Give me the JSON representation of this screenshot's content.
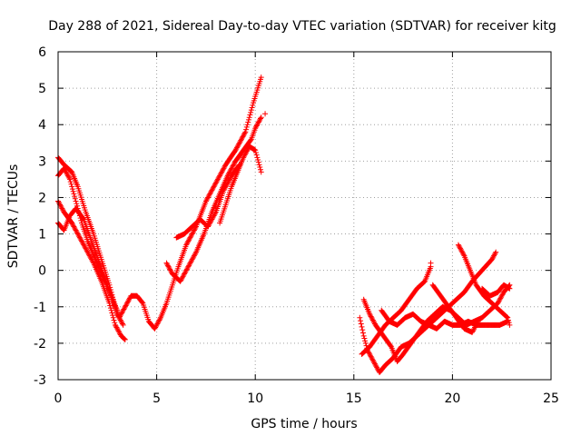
{
  "chart_data": {
    "type": "scatter",
    "title": "Day 288 of 2021, Sidereal Day-to-day VTEC variation (SDTVAR) for receiver kitg",
    "xlabel": "GPS time / hours",
    "ylabel": "SDTVAR / TECUs",
    "xlim": [
      0,
      25
    ],
    "ylim": [
      -3,
      6
    ],
    "xticks": [
      0,
      5,
      10,
      15,
      20,
      25
    ],
    "yticks": [
      -3,
      -2,
      -1,
      0,
      1,
      2,
      3,
      4,
      5,
      6
    ],
    "grid": true,
    "marker": "+",
    "color": "#ff0000",
    "tracks": [
      [
        [
          0.0,
          3.1
        ],
        [
          0.3,
          2.9
        ],
        [
          0.7,
          2.7
        ],
        [
          1.0,
          2.3
        ],
        [
          1.4,
          1.6
        ],
        [
          1.8,
          1.0
        ],
        [
          2.2,
          0.3
        ],
        [
          2.6,
          -0.4
        ],
        [
          2.9,
          -1.0
        ],
        [
          3.1,
          -1.3
        ],
        [
          3.4,
          -1.0
        ],
        [
          3.7,
          -0.7
        ],
        [
          4.0,
          -0.7
        ],
        [
          4.3,
          -0.9
        ],
        [
          4.6,
          -1.4
        ],
        [
          4.9,
          -1.6
        ],
        [
          5.2,
          -1.3
        ],
        [
          5.5,
          -0.9
        ],
        [
          5.8,
          -0.4
        ],
        [
          6.1,
          0.1
        ],
        [
          6.5,
          0.7
        ],
        [
          7.0,
          1.2
        ],
        [
          7.5,
          1.9
        ],
        [
          8.0,
          2.4
        ],
        [
          8.5,
          2.9
        ],
        [
          9.0,
          3.3
        ],
        [
          9.5,
          3.8
        ],
        [
          9.9,
          4.6
        ],
        [
          10.3,
          5.3
        ]
      ],
      [
        [
          0.0,
          1.9
        ],
        [
          0.3,
          1.6
        ],
        [
          0.7,
          1.3
        ],
        [
          1.0,
          1.0
        ],
        [
          1.4,
          0.6
        ],
        [
          1.8,
          0.2
        ],
        [
          2.2,
          -0.3
        ],
        [
          2.6,
          -0.9
        ],
        [
          2.9,
          -1.5
        ],
        [
          3.2,
          -1.8
        ],
        [
          3.4,
          -1.9
        ]
      ],
      [
        [
          0.0,
          1.3
        ],
        [
          0.3,
          1.1
        ],
        [
          0.6,
          1.5
        ],
        [
          0.9,
          1.7
        ],
        [
          1.3,
          1.4
        ],
        [
          1.7,
          0.8
        ],
        [
          2.1,
          0.2
        ],
        [
          2.5,
          -0.4
        ],
        [
          2.8,
          -0.9
        ],
        [
          3.0,
          -1.2
        ],
        [
          3.3,
          -1.5
        ]
      ],
      [
        [
          0.0,
          2.6
        ],
        [
          0.3,
          2.8
        ],
        [
          0.6,
          2.5
        ],
        [
          0.9,
          1.9
        ],
        [
          1.2,
          1.3
        ],
        [
          1.5,
          0.8
        ],
        [
          1.9,
          0.3
        ],
        [
          2.3,
          -0.2
        ],
        [
          2.7,
          -0.7
        ],
        [
          3.0,
          -1.1
        ]
      ],
      [
        [
          5.5,
          0.2
        ],
        [
          5.8,
          -0.1
        ],
        [
          6.2,
          -0.3
        ],
        [
          6.6,
          0.1
        ],
        [
          7.0,
          0.5
        ],
        [
          7.4,
          1.0
        ],
        [
          7.8,
          1.6
        ],
        [
          8.2,
          2.1
        ],
        [
          8.6,
          2.6
        ],
        [
          9.0,
          3.0
        ],
        [
          9.4,
          3.3
        ],
        [
          9.8,
          3.6
        ],
        [
          10.0,
          3.9
        ],
        [
          10.3,
          4.2
        ]
      ],
      [
        [
          8.2,
          1.3
        ],
        [
          8.5,
          1.8
        ],
        [
          8.8,
          2.3
        ],
        [
          9.1,
          2.7
        ],
        [
          9.4,
          3.1
        ],
        [
          9.7,
          3.4
        ],
        [
          10.0,
          3.3
        ],
        [
          10.3,
          2.7
        ]
      ],
      [
        [
          6.0,
          0.9
        ],
        [
          6.4,
          1.0
        ],
        [
          6.8,
          1.2
        ],
        [
          7.2,
          1.4
        ],
        [
          7.6,
          1.2
        ],
        [
          8.0,
          1.6
        ],
        [
          8.4,
          2.2
        ],
        [
          8.8,
          2.6
        ],
        [
          9.2,
          2.9
        ]
      ],
      [
        [
          15.3,
          -1.3
        ],
        [
          15.5,
          -1.8
        ],
        [
          15.7,
          -2.2
        ],
        [
          16.0,
          -2.5
        ],
        [
          16.3,
          -2.8
        ],
        [
          16.6,
          -2.6
        ],
        [
          17.0,
          -2.4
        ],
        [
          17.4,
          -2.1
        ],
        [
          17.8,
          -2.0
        ],
        [
          18.2,
          -1.8
        ],
        [
          18.6,
          -1.6
        ],
        [
          19.0,
          -1.4
        ],
        [
          19.4,
          -1.2
        ],
        [
          19.8,
          -1.0
        ],
        [
          20.2,
          -0.8
        ],
        [
          20.6,
          -0.6
        ],
        [
          21.0,
          -0.3
        ],
        [
          21.5,
          0.0
        ],
        [
          22.0,
          0.3
        ],
        [
          22.2,
          0.5
        ]
      ],
      [
        [
          15.4,
          -2.3
        ],
        [
          15.8,
          -2.1
        ],
        [
          16.2,
          -1.8
        ],
        [
          16.6,
          -1.5
        ],
        [
          17.0,
          -1.3
        ],
        [
          17.4,
          -1.1
        ],
        [
          17.8,
          -0.8
        ],
        [
          18.2,
          -0.5
        ],
        [
          18.6,
          -0.3
        ],
        [
          18.9,
          0.1
        ]
      ],
      [
        [
          15.5,
          -0.8
        ],
        [
          15.8,
          -1.2
        ],
        [
          16.1,
          -1.5
        ],
        [
          16.5,
          -1.8
        ],
        [
          16.9,
          -2.1
        ],
        [
          17.2,
          -2.5
        ],
        [
          17.5,
          -2.3
        ],
        [
          17.9,
          -2.0
        ],
        [
          18.3,
          -1.7
        ],
        [
          18.7,
          -1.4
        ],
        [
          19.1,
          -1.2
        ],
        [
          19.5,
          -1.0
        ],
        [
          19.9,
          -1.1
        ],
        [
          20.3,
          -1.3
        ],
        [
          20.7,
          -1.5
        ],
        [
          21.1,
          -1.4
        ],
        [
          21.5,
          -1.3
        ],
        [
          21.9,
          -1.1
        ],
        [
          22.3,
          -0.9
        ],
        [
          22.6,
          -0.6
        ],
        [
          22.9,
          -0.4
        ]
      ],
      [
        [
          16.4,
          -1.1
        ],
        [
          16.8,
          -1.4
        ],
        [
          17.2,
          -1.5
        ],
        [
          17.6,
          -1.3
        ],
        [
          18.0,
          -1.2
        ],
        [
          18.4,
          -1.4
        ],
        [
          18.8,
          -1.5
        ],
        [
          19.2,
          -1.6
        ],
        [
          19.6,
          -1.4
        ],
        [
          20.0,
          -1.5
        ],
        [
          20.4,
          -1.5
        ],
        [
          20.8,
          -1.4
        ],
        [
          21.2,
          -1.5
        ],
        [
          21.6,
          -1.5
        ],
        [
          22.0,
          -1.5
        ],
        [
          22.4,
          -1.5
        ],
        [
          22.8,
          -1.4
        ]
      ],
      [
        [
          19.0,
          -0.4
        ],
        [
          19.4,
          -0.7
        ],
        [
          19.8,
          -1.0
        ],
        [
          20.2,
          -1.3
        ],
        [
          20.6,
          -1.6
        ],
        [
          21.0,
          -1.7
        ],
        [
          21.3,
          -1.4
        ]
      ],
      [
        [
          20.3,
          0.7
        ],
        [
          20.6,
          0.4
        ],
        [
          20.9,
          0.0
        ],
        [
          21.2,
          -0.4
        ],
        [
          21.6,
          -0.7
        ],
        [
          22.0,
          -0.9
        ],
        [
          22.4,
          -1.1
        ],
        [
          22.8,
          -1.3
        ],
        [
          22.9,
          -1.5
        ]
      ],
      [
        [
          21.5,
          -0.5
        ],
        [
          21.9,
          -0.7
        ],
        [
          22.3,
          -0.6
        ],
        [
          22.6,
          -0.4
        ],
        [
          22.9,
          -0.5
        ]
      ]
    ],
    "isolated_points": [
      [
        10.5,
        4.3
      ],
      [
        18.9,
        0.2
      ]
    ]
  }
}
